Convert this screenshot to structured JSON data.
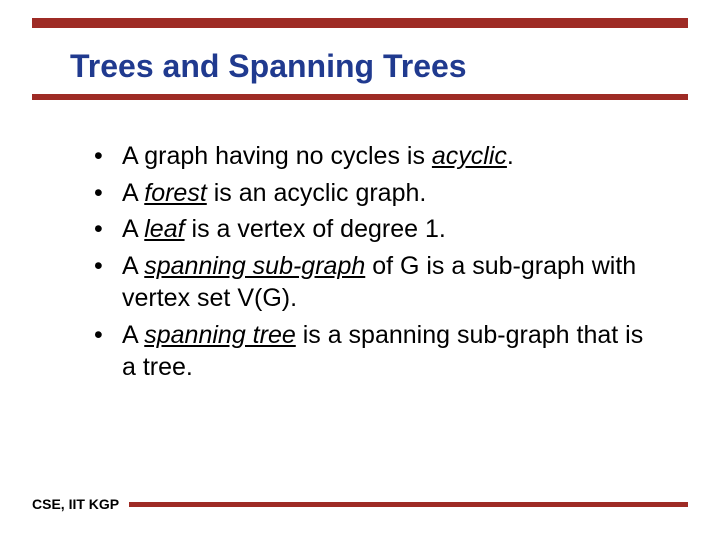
{
  "colors": {
    "bar": "#9e2b25",
    "title": "#203a8f"
  },
  "title": "Trees and Spanning Trees",
  "bullets": [
    {
      "html": "A graph having no cycles is <span class=\"i u\">acyclic</span>."
    },
    {
      "html": "A <span class=\"i u\">forest</span> is an acyclic graph."
    },
    {
      "html": "A <span class=\"i u\">leaf</span> is a vertex of degree 1."
    },
    {
      "html": "A <span class=\"i u\">spanning sub-graph</span> of G is a sub-graph with vertex set V(G)."
    },
    {
      "html": "A <span class=\"i u\">spanning tree</span> is a spanning sub-graph that is a tree."
    }
  ],
  "footer": "CSE, IIT KGP"
}
